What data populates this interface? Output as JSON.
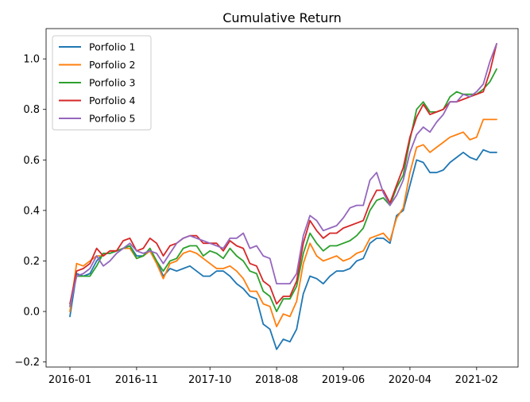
{
  "chart_data": {
    "type": "line",
    "title": "Cumulative Return",
    "xlabel": "",
    "ylabel": "",
    "x": [
      "2016-01",
      "2016-02",
      "2016-03",
      "2016-04",
      "2016-05",
      "2016-06",
      "2016-07",
      "2016-08",
      "2016-09",
      "2016-10",
      "2016-11",
      "2016-12",
      "2017-01",
      "2017-02",
      "2017-03",
      "2017-04",
      "2017-05",
      "2017-06",
      "2017-07",
      "2017-08",
      "2017-09",
      "2017-10",
      "2017-11",
      "2017-12",
      "2018-01",
      "2018-02",
      "2018-03",
      "2018-04",
      "2018-05",
      "2018-06",
      "2018-07",
      "2018-08",
      "2018-09",
      "2018-10",
      "2018-11",
      "2018-12",
      "2019-01",
      "2019-02",
      "2019-03",
      "2019-04",
      "2019-05",
      "2019-06",
      "2019-07",
      "2019-08",
      "2019-09",
      "2019-10",
      "2019-11",
      "2019-12",
      "2020-01",
      "2020-02",
      "2020-03",
      "2020-04",
      "2020-05",
      "2020-06",
      "2020-07",
      "2020-08",
      "2020-09",
      "2020-10",
      "2020-11",
      "2020-12",
      "2021-01",
      "2021-02",
      "2021-03",
      "2021-04",
      "2021-05"
    ],
    "x_tick_labels": [
      "2016-01",
      "2016-11",
      "2017-10",
      "2018-08",
      "2019-06",
      "2020-04",
      "2021-02"
    ],
    "ylim": [
      -0.22,
      1.12
    ],
    "y_ticks": [
      -0.2,
      0.0,
      0.2,
      0.4,
      0.6,
      0.8,
      1.0
    ],
    "y_tick_labels": [
      "−0.2",
      "0.0",
      "0.2",
      "0.4",
      "0.6",
      "0.8",
      "1.0"
    ],
    "grid": false,
    "legend_position": "top-left",
    "series": [
      {
        "name": "Porfolio 1",
        "color": "#1f77b4",
        "values": [
          -0.02,
          0.15,
          0.14,
          0.15,
          0.2,
          0.23,
          0.23,
          0.24,
          0.25,
          0.26,
          0.22,
          0.22,
          0.24,
          0.2,
          0.14,
          0.17,
          0.16,
          0.17,
          0.18,
          0.16,
          0.14,
          0.14,
          0.16,
          0.16,
          0.14,
          0.11,
          0.09,
          0.06,
          0.05,
          -0.05,
          -0.07,
          -0.15,
          -0.11,
          -0.12,
          -0.07,
          0.07,
          0.14,
          0.13,
          0.11,
          0.14,
          0.16,
          0.16,
          0.17,
          0.2,
          0.21,
          0.27,
          0.29,
          0.29,
          0.27,
          0.38,
          0.4,
          0.5,
          0.6,
          0.59,
          0.55,
          0.55,
          0.56,
          0.59,
          0.61,
          0.63,
          0.61,
          0.6,
          0.64,
          0.63,
          0.63
        ]
      },
      {
        "name": "Porfolio 2",
        "color": "#ff7f0e",
        "values": [
          0.0,
          0.19,
          0.18,
          0.2,
          0.22,
          0.22,
          0.24,
          0.24,
          0.25,
          0.25,
          0.21,
          0.22,
          0.24,
          0.19,
          0.13,
          0.19,
          0.2,
          0.23,
          0.24,
          0.23,
          0.21,
          0.19,
          0.17,
          0.17,
          0.18,
          0.16,
          0.13,
          0.08,
          0.08,
          0.03,
          0.02,
          -0.06,
          -0.01,
          -0.02,
          0.04,
          0.19,
          0.27,
          0.22,
          0.2,
          0.21,
          0.22,
          0.2,
          0.21,
          0.23,
          0.24,
          0.29,
          0.3,
          0.31,
          0.28,
          0.37,
          0.41,
          0.55,
          0.65,
          0.66,
          0.63,
          0.65,
          0.67,
          0.69,
          0.7,
          0.71,
          0.68,
          0.69,
          0.76,
          0.76,
          0.76
        ]
      },
      {
        "name": "Porfolio 3",
        "color": "#2ca02c",
        "values": [
          0.02,
          0.14,
          0.14,
          0.14,
          0.18,
          0.23,
          0.23,
          0.24,
          0.25,
          0.26,
          0.21,
          0.22,
          0.25,
          0.2,
          0.16,
          0.2,
          0.21,
          0.25,
          0.26,
          0.26,
          0.22,
          0.24,
          0.23,
          0.21,
          0.25,
          0.22,
          0.2,
          0.16,
          0.15,
          0.08,
          0.06,
          0.0,
          0.05,
          0.05,
          0.1,
          0.23,
          0.31,
          0.27,
          0.24,
          0.26,
          0.26,
          0.27,
          0.28,
          0.3,
          0.33,
          0.4,
          0.44,
          0.45,
          0.42,
          0.49,
          0.54,
          0.68,
          0.8,
          0.83,
          0.79,
          0.79,
          0.8,
          0.85,
          0.87,
          0.86,
          0.86,
          0.86,
          0.88,
          0.91,
          0.96
        ]
      },
      {
        "name": "Porfolio 4",
        "color": "#d62728",
        "values": [
          0.03,
          0.16,
          0.17,
          0.19,
          0.25,
          0.22,
          0.24,
          0.24,
          0.28,
          0.29,
          0.24,
          0.25,
          0.29,
          0.27,
          0.22,
          0.26,
          0.27,
          0.29,
          0.3,
          0.3,
          0.27,
          0.27,
          0.27,
          0.24,
          0.28,
          0.26,
          0.25,
          0.19,
          0.18,
          0.12,
          0.1,
          0.03,
          0.06,
          0.06,
          0.12,
          0.27,
          0.36,
          0.32,
          0.29,
          0.31,
          0.31,
          0.33,
          0.34,
          0.35,
          0.36,
          0.43,
          0.48,
          0.48,
          0.43,
          0.5,
          0.57,
          0.69,
          0.77,
          0.82,
          0.78,
          0.79,
          0.8,
          0.83,
          0.83,
          0.84,
          0.85,
          0.86,
          0.87,
          0.95,
          1.06
        ]
      },
      {
        "name": "Porfolio 5",
        "color": "#9467bd",
        "values": [
          0.02,
          0.14,
          0.15,
          0.17,
          0.22,
          0.18,
          0.2,
          0.23,
          0.25,
          0.27,
          0.24,
          0.23,
          0.24,
          0.23,
          0.19,
          0.23,
          0.27,
          0.29,
          0.3,
          0.29,
          0.28,
          0.27,
          0.26,
          0.25,
          0.29,
          0.29,
          0.31,
          0.25,
          0.26,
          0.22,
          0.21,
          0.11,
          0.11,
          0.11,
          0.15,
          0.3,
          0.38,
          0.36,
          0.32,
          0.33,
          0.34,
          0.37,
          0.41,
          0.42,
          0.42,
          0.52,
          0.55,
          0.47,
          0.42,
          0.46,
          0.52,
          0.63,
          0.7,
          0.73,
          0.71,
          0.75,
          0.78,
          0.83,
          0.83,
          0.86,
          0.85,
          0.87,
          0.9,
          0.99,
          1.06
        ]
      }
    ]
  }
}
